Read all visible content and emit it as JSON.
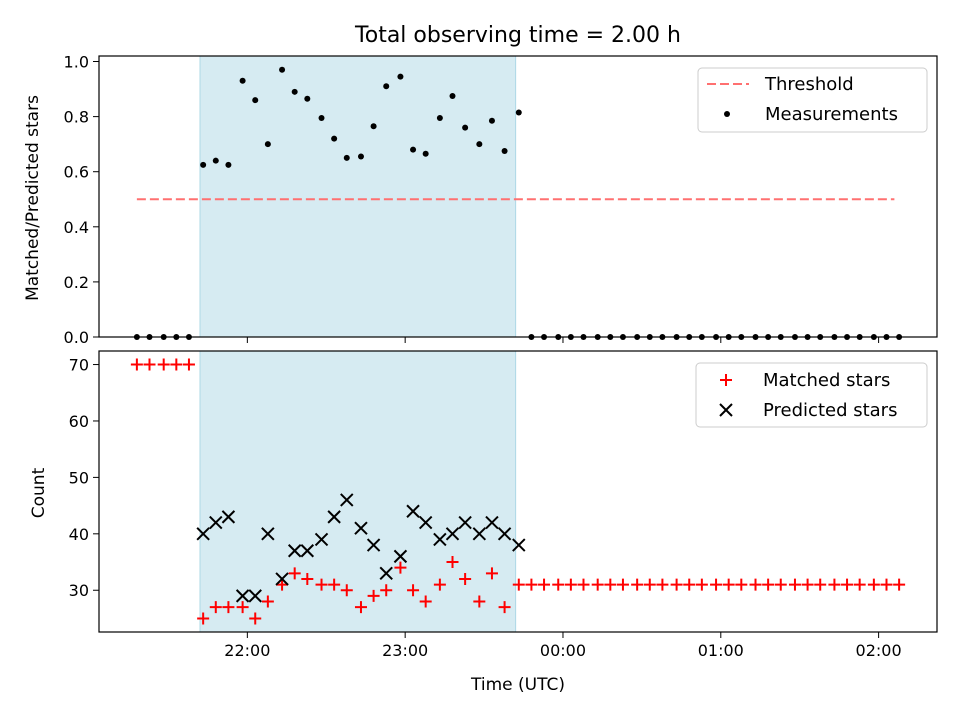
{
  "chart_data": {
    "title": "Total observing time = 2.00 h",
    "xlabel": "Time (UTC)",
    "x_tick_labels": [
      "22:00",
      "23:00",
      "00:00",
      "01:00",
      "02:00"
    ],
    "x_range_hours": [
      -2.94,
      2.37
    ],
    "observing_window_hours": [
      -2.3,
      -0.3
    ],
    "window_color": "#add8e6",
    "panels": [
      {
        "type": "scatter",
        "ylabel": "Matched/Predicted stars",
        "ylim": [
          0,
          1.02
        ],
        "yticks": [
          "0.0",
          "0.2",
          "0.4",
          "0.6",
          "0.8",
          "1.0"
        ],
        "legend": "top-right",
        "threshold": {
          "name": "Threshold",
          "y": 0.5,
          "x_range_hours": [
            -2.7,
            2.1
          ],
          "color": "#ff7070",
          "style": "dashed"
        },
        "measurements": {
          "name": "Measurements",
          "color": "#000000",
          "points": [
            [
              -2.7,
              0.0
            ],
            [
              -2.62,
              0.0
            ],
            [
              -2.53,
              0.0
            ],
            [
              -2.45,
              0.0
            ],
            [
              -2.37,
              0.0
            ],
            [
              -2.28,
              0.625
            ],
            [
              -2.2,
              0.64
            ],
            [
              -2.12,
              0.625
            ],
            [
              -2.03,
              0.93
            ],
            [
              -1.95,
              0.86
            ],
            [
              -1.87,
              0.7
            ],
            [
              -1.78,
              0.97
            ],
            [
              -1.7,
              0.89
            ],
            [
              -1.62,
              0.865
            ],
            [
              -1.53,
              0.795
            ],
            [
              -1.45,
              0.72
            ],
            [
              -1.37,
              0.65
            ],
            [
              -1.28,
              0.655
            ],
            [
              -1.2,
              0.765
            ],
            [
              -1.12,
              0.91
            ],
            [
              -1.03,
              0.945
            ],
            [
              -0.95,
              0.68
            ],
            [
              -0.87,
              0.665
            ],
            [
              -0.78,
              0.795
            ],
            [
              -0.7,
              0.875
            ],
            [
              -0.62,
              0.76
            ],
            [
              -0.53,
              0.7
            ],
            [
              -0.45,
              0.785
            ],
            [
              -0.37,
              0.675
            ],
            [
              -0.28,
              0.815
            ],
            [
              -0.2,
              0.0
            ],
            [
              -0.12,
              0.0
            ],
            [
              -0.03,
              0.0
            ],
            [
              0.05,
              0.0
            ],
            [
              0.13,
              0.0
            ],
            [
              0.22,
              0.0
            ],
            [
              0.3,
              0.0
            ],
            [
              0.38,
              0.0
            ],
            [
              0.47,
              0.0
            ],
            [
              0.55,
              0.0
            ],
            [
              0.63,
              0.0
            ],
            [
              0.72,
              0.0
            ],
            [
              0.8,
              0.0
            ],
            [
              0.88,
              0.0
            ],
            [
              0.97,
              0.0
            ],
            [
              1.05,
              0.0
            ],
            [
              1.13,
              0.0
            ],
            [
              1.22,
              0.0
            ],
            [
              1.3,
              0.0
            ],
            [
              1.38,
              0.0
            ],
            [
              1.47,
              0.0
            ],
            [
              1.55,
              0.0
            ],
            [
              1.63,
              0.0
            ],
            [
              1.72,
              0.0
            ],
            [
              1.8,
              0.0
            ],
            [
              1.88,
              0.0
            ],
            [
              1.97,
              0.0
            ],
            [
              2.05,
              0.0
            ],
            [
              2.13,
              0.0
            ]
          ]
        }
      },
      {
        "type": "scatter",
        "ylabel": "Count",
        "ylim": [
          22.6,
          72.4
        ],
        "yticks": [
          "30",
          "40",
          "50",
          "60",
          "70"
        ],
        "legend": "top-right",
        "series": [
          {
            "name": "Matched stars",
            "marker": "+",
            "color": "#ff0000",
            "points": [
              [
                -2.7,
                70
              ],
              [
                -2.62,
                70
              ],
              [
                -2.53,
                70
              ],
              [
                -2.45,
                70
              ],
              [
                -2.37,
                70
              ],
              [
                -2.28,
                25
              ],
              [
                -2.2,
                27
              ],
              [
                -2.12,
                27
              ],
              [
                -2.03,
                27
              ],
              [
                -1.95,
                25
              ],
              [
                -1.87,
                28
              ],
              [
                -1.78,
                31
              ],
              [
                -1.7,
                33
              ],
              [
                -1.62,
                32
              ],
              [
                -1.53,
                31
              ],
              [
                -1.45,
                31
              ],
              [
                -1.37,
                30
              ],
              [
                -1.28,
                27
              ],
              [
                -1.2,
                29
              ],
              [
                -1.12,
                30
              ],
              [
                -1.03,
                34
              ],
              [
                -0.95,
                30
              ],
              [
                -0.87,
                28
              ],
              [
                -0.78,
                31
              ],
              [
                -0.7,
                35
              ],
              [
                -0.62,
                32
              ],
              [
                -0.53,
                28
              ],
              [
                -0.45,
                33
              ],
              [
                -0.37,
                27
              ],
              [
                -0.28,
                31
              ],
              [
                -0.2,
                31
              ],
              [
                -0.12,
                31
              ],
              [
                -0.03,
                31
              ],
              [
                0.05,
                31
              ],
              [
                0.13,
                31
              ],
              [
                0.22,
                31
              ],
              [
                0.3,
                31
              ],
              [
                0.38,
                31
              ],
              [
                0.47,
                31
              ],
              [
                0.55,
                31
              ],
              [
                0.63,
                31
              ],
              [
                0.72,
                31
              ],
              [
                0.8,
                31
              ],
              [
                0.88,
                31
              ],
              [
                0.97,
                31
              ],
              [
                1.05,
                31
              ],
              [
                1.13,
                31
              ],
              [
                1.22,
                31
              ],
              [
                1.3,
                31
              ],
              [
                1.38,
                31
              ],
              [
                1.47,
                31
              ],
              [
                1.55,
                31
              ],
              [
                1.63,
                31
              ],
              [
                1.72,
                31
              ],
              [
                1.8,
                31
              ],
              [
                1.88,
                31
              ],
              [
                1.97,
                31
              ],
              [
                2.05,
                31
              ],
              [
                2.13,
                31
              ]
            ]
          },
          {
            "name": "Predicted stars",
            "marker": "x",
            "color": "#000000",
            "points": [
              [
                -2.28,
                40
              ],
              [
                -2.2,
                42
              ],
              [
                -2.12,
                43
              ],
              [
                -2.03,
                29
              ],
              [
                -1.95,
                29
              ],
              [
                -1.87,
                40
              ],
              [
                -1.78,
                32
              ],
              [
                -1.7,
                37
              ],
              [
                -1.62,
                37
              ],
              [
                -1.53,
                39
              ],
              [
                -1.45,
                43
              ],
              [
                -1.37,
                46
              ],
              [
                -1.28,
                41
              ],
              [
                -1.2,
                38
              ],
              [
                -1.12,
                33
              ],
              [
                -1.03,
                36
              ],
              [
                -0.95,
                44
              ],
              [
                -0.87,
                42
              ],
              [
                -0.78,
                39
              ],
              [
                -0.7,
                40
              ],
              [
                -0.62,
                42
              ],
              [
                -0.53,
                40
              ],
              [
                -0.45,
                42
              ],
              [
                -0.37,
                40
              ],
              [
                -0.28,
                38
              ]
            ]
          }
        ]
      }
    ]
  }
}
